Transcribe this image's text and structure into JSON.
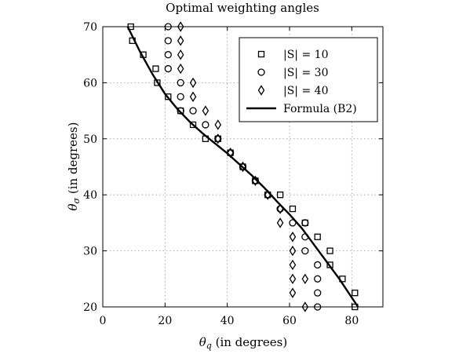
{
  "chart_data": {
    "type": "scatter",
    "title": "Optimal weighting angles",
    "xlabel": "θq (in degrees)",
    "ylabel": "θσ (in degrees)",
    "xlim": [
      0,
      90
    ],
    "ylim": [
      20,
      70
    ],
    "xticks": [
      "0",
      "20",
      "40",
      "60",
      "80"
    ],
    "yticks": [
      "20",
      "30",
      "40",
      "50",
      "60",
      "70"
    ],
    "grid": true,
    "legend_position": "top-right",
    "series": [
      {
        "name": "|S| = 10",
        "marker": "square",
        "x": [
          9,
          9.5,
          13,
          17,
          17.5,
          21,
          25,
          29,
          33,
          37,
          41,
          45,
          49,
          53,
          57,
          61,
          65,
          69,
          73,
          73,
          77,
          81,
          81
        ],
        "y": [
          70,
          67.5,
          65,
          62.5,
          60,
          57.5,
          55,
          52.5,
          50,
          50,
          47.5,
          45,
          42.5,
          40,
          40,
          37.5,
          35,
          32.5,
          30,
          27.5,
          25,
          22.5,
          20
        ]
      },
      {
        "name": "|S| = 30",
        "marker": "circle",
        "x": [
          21,
          21,
          21,
          21,
          25,
          25,
          25,
          29,
          33,
          37,
          41,
          45,
          49,
          53,
          57,
          61,
          65,
          65,
          65,
          69,
          69,
          69,
          69
        ],
        "y": [
          70,
          67.5,
          65,
          62.5,
          60,
          57.5,
          55,
          55,
          52.5,
          50,
          47.5,
          45,
          42.5,
          40,
          37.5,
          35,
          35,
          32.5,
          30,
          27.5,
          25,
          22.5,
          20
        ]
      },
      {
        "name": "|S| = 40",
        "marker": "diamond",
        "x": [
          25,
          25,
          25,
          25,
          29,
          29,
          33,
          37,
          37,
          41,
          45,
          49,
          53,
          57,
          57,
          61,
          61,
          61,
          61,
          65,
          61,
          65
        ],
        "y": [
          70,
          67.5,
          65,
          62.5,
          60,
          57.5,
          55,
          52.5,
          50,
          47.5,
          45,
          42.5,
          40,
          37.5,
          35,
          32.5,
          30,
          27.5,
          25,
          25,
          22.5,
          20
        ]
      },
      {
        "name": "Formula (B2)",
        "type": "line",
        "x": [
          8,
          12,
          16,
          20,
          24,
          28,
          32,
          36,
          40,
          44,
          48,
          52,
          56,
          60,
          64,
          68,
          72,
          76,
          79,
          82
        ],
        "y": [
          70,
          65.5,
          61.5,
          58,
          55.3,
          53,
          51,
          49.2,
          47.4,
          45.4,
          43.4,
          41.2,
          38.8,
          36.5,
          34,
          31,
          28,
          25,
          22.5,
          20
        ]
      }
    ]
  }
}
